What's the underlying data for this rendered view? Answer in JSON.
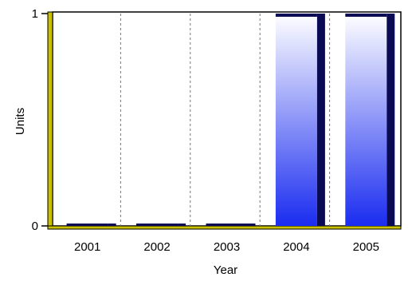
{
  "chart_data": {
    "type": "bar",
    "title": "",
    "xlabel": "Year",
    "ylabel": "Units",
    "categories": [
      "2001",
      "2002",
      "2003",
      "2004",
      "2005"
    ],
    "values": [
      0,
      0,
      0,
      1,
      1
    ],
    "ylim": [
      0,
      1
    ],
    "yticks": [
      "0",
      "1"
    ],
    "grid": "vertical dashed",
    "legend": "none",
    "colors": {
      "bar_top": "#ffffff",
      "bar_bottom": "#1a2cf0",
      "bar_shadow": "#0b0b55",
      "axis_wall": "#c8c000",
      "grid": "#777777",
      "frame": "#000000"
    }
  }
}
